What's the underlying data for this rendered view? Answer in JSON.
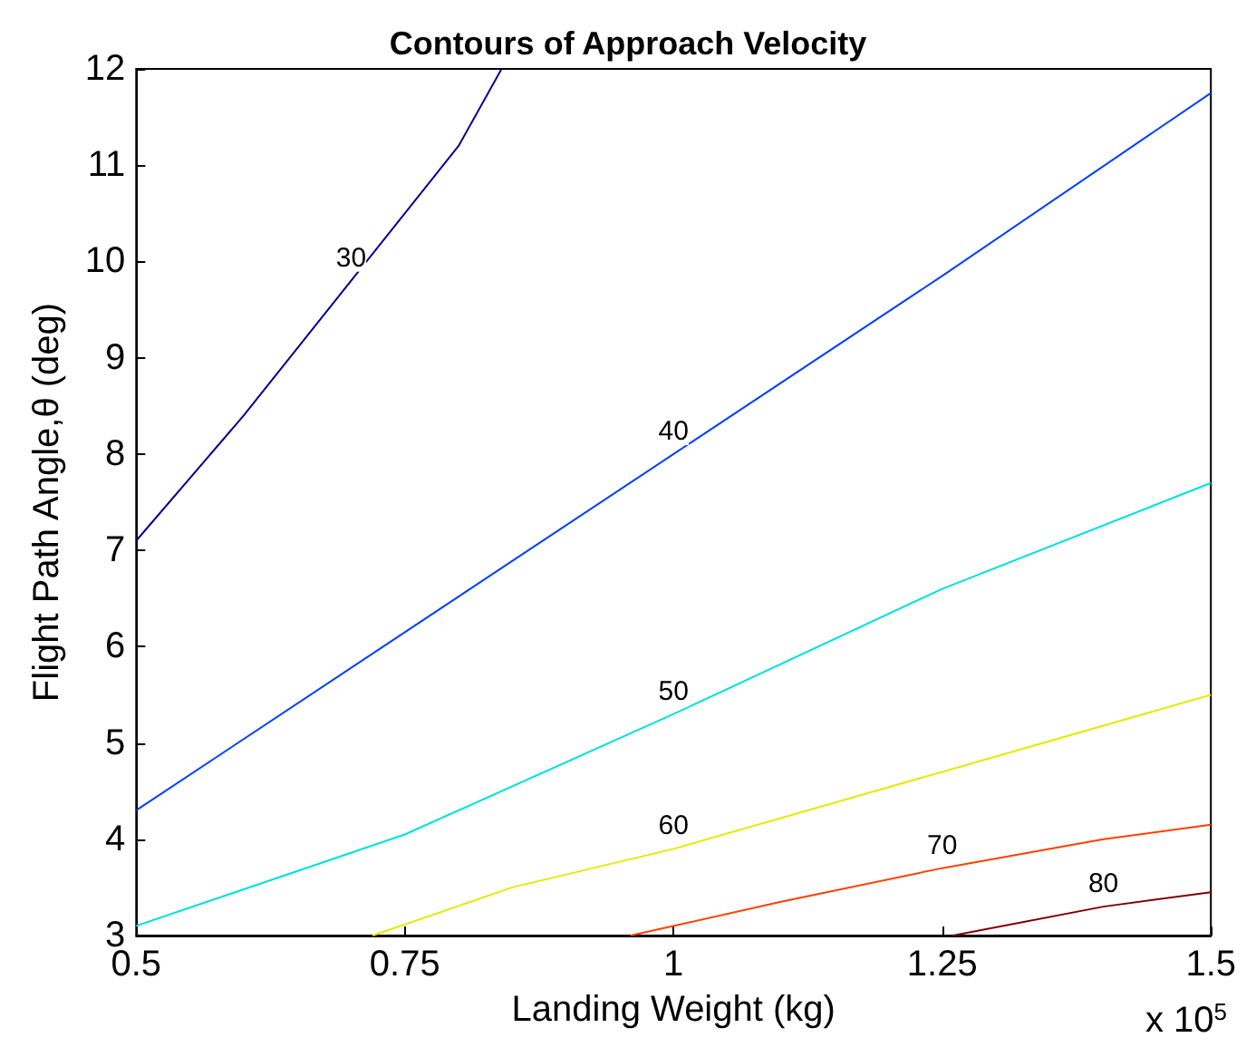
{
  "chart_data": {
    "type": "line",
    "title": "Contours of Approach Velocity",
    "xlabel": "Landing Weight (kg)",
    "ylabel": "Flight Path Angle,θ (deg)",
    "annotations": [
      "x 10$^{5}$"
    ],
    "xlim": [
      0.5,
      1.5
    ],
    "xticks": [
      0.5,
      0.75,
      1,
      1.25,
      1.5
    ],
    "ylim": [
      3,
      12
    ],
    "yticks": [
      3,
      4,
      5,
      6,
      7,
      8,
      9,
      10,
      11,
      12
    ],
    "grid": false,
    "legend": false,
    "marker": "none",
    "line_style": "solid",
    "series": [
      {
        "name": "30",
        "color": "#00008f",
        "x": [
          0.5,
          0.6,
          0.7,
          0.8,
          0.84
        ],
        "values": [
          7.1,
          8.4,
          9.8,
          11.2,
          12
        ]
      },
      {
        "name": "40",
        "color": "#0040ff",
        "x": [
          0.5,
          0.75,
          1,
          1.25,
          1.5
        ],
        "values": [
          4.3,
          6.15,
          8,
          9.85,
          11.75
        ]
      },
      {
        "name": "50",
        "color": "#00e0e0",
        "x": [
          0.5,
          0.75,
          1,
          1.25,
          1.5
        ],
        "values": [
          3.1,
          4.05,
          5.3,
          6.6,
          7.7
        ]
      },
      {
        "name": "60",
        "color": "#e8e800",
        "x": [
          0.72,
          0.85,
          1,
          1.25,
          1.5
        ],
        "values": [
          3,
          3.5,
          3.9,
          4.7,
          5.5
        ]
      },
      {
        "name": "70",
        "color": "#ff4000",
        "x": [
          0.96,
          1.1,
          1.25,
          1.4,
          1.5
        ],
        "values": [
          3,
          3.35,
          3.7,
          4,
          4.15
        ]
      },
      {
        "name": "80",
        "color": "#800000",
        "x": [
          1.26,
          1.4,
          1.5
        ],
        "values": [
          3,
          3.3,
          3.45
        ]
      }
    ]
  }
}
